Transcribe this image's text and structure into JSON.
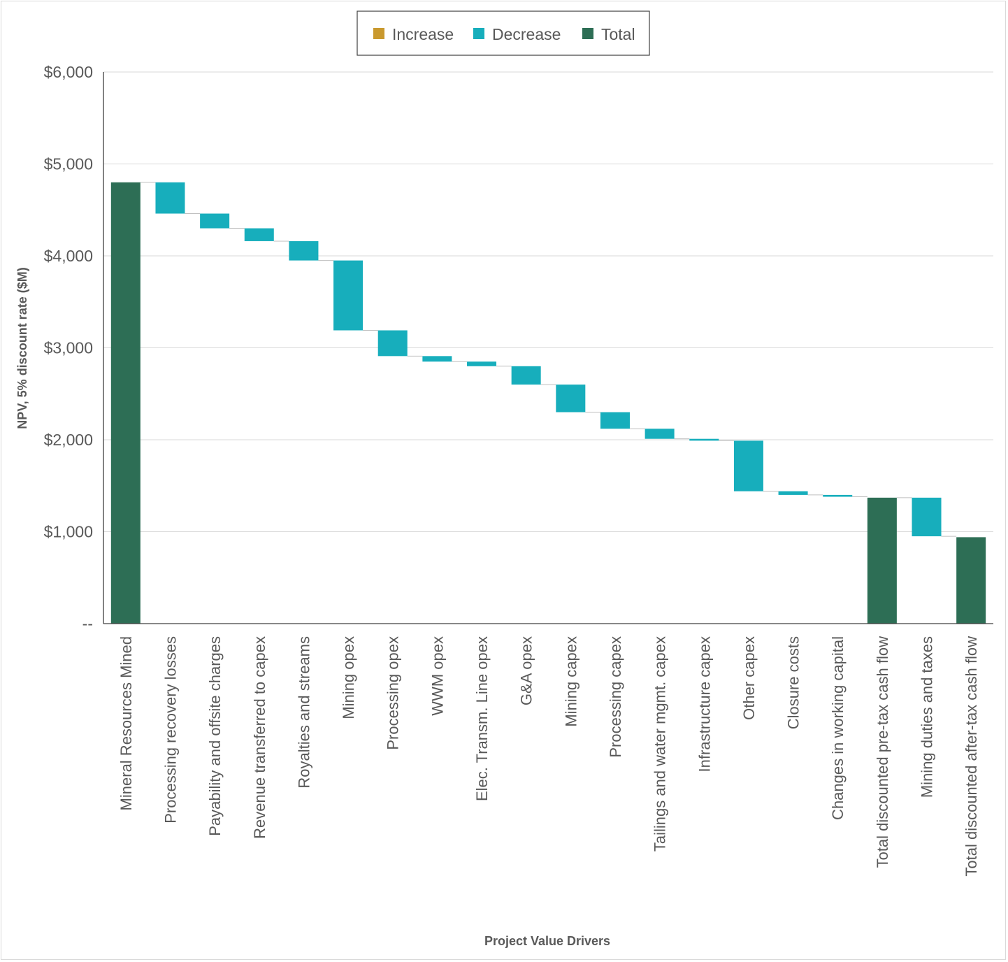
{
  "chart_data": {
    "type": "bar",
    "subtype": "waterfall",
    "xlabel": "Project Value Drivers",
    "ylabel": "NPV, 5% discount rate ($M)",
    "ylim": [
      0,
      6000
    ],
    "y_ticks": [
      {
        "value": 0,
        "label": "--"
      },
      {
        "value": 1000,
        "label": "$1,000"
      },
      {
        "value": 2000,
        "label": "$2,000"
      },
      {
        "value": 3000,
        "label": "$3,000"
      },
      {
        "value": 4000,
        "label": "$4,000"
      },
      {
        "value": 5000,
        "label": "$5,000"
      },
      {
        "value": 6000,
        "label": "$6,000"
      }
    ],
    "grid": true,
    "legend_position": "top-center",
    "legend": [
      {
        "name": "Increase",
        "color": "#c9992e"
      },
      {
        "name": "Decrease",
        "color": "#17aebc"
      },
      {
        "name": "Total",
        "color": "#2d6e55"
      }
    ],
    "categories": [
      "Mineral Resources Mined",
      "Processing recovery losses",
      "Payability and offsite charges",
      "Revenue transferred to capex",
      "Royalties and streams",
      "Mining opex",
      "Processing opex",
      "WWM opex",
      "Elec. Transm. Line opex",
      "G&A opex",
      "Mining capex",
      "Processing capex",
      "Tailings and water mgmt. capex",
      "Infrastructure capex",
      "Other capex",
      "Closure costs",
      "Changes in working capital",
      "Total discounted pre-tax cash flow",
      "Mining duties and taxes",
      "Total discounted after-tax cash flow"
    ],
    "bars": [
      {
        "kind": "total",
        "start": 0,
        "end": 4800
      },
      {
        "kind": "decrease",
        "start": 4800,
        "end": 4460
      },
      {
        "kind": "decrease",
        "start": 4460,
        "end": 4300
      },
      {
        "kind": "decrease",
        "start": 4300,
        "end": 4160
      },
      {
        "kind": "decrease",
        "start": 4160,
        "end": 3950
      },
      {
        "kind": "decrease",
        "start": 3950,
        "end": 3190
      },
      {
        "kind": "decrease",
        "start": 3190,
        "end": 2910
      },
      {
        "kind": "decrease",
        "start": 2910,
        "end": 2850
      },
      {
        "kind": "decrease",
        "start": 2850,
        "end": 2800
      },
      {
        "kind": "decrease",
        "start": 2800,
        "end": 2600
      },
      {
        "kind": "decrease",
        "start": 2600,
        "end": 2300
      },
      {
        "kind": "decrease",
        "start": 2300,
        "end": 2120
      },
      {
        "kind": "decrease",
        "start": 2120,
        "end": 2010
      },
      {
        "kind": "decrease",
        "start": 2010,
        "end": 1990
      },
      {
        "kind": "decrease",
        "start": 1990,
        "end": 1440
      },
      {
        "kind": "decrease",
        "start": 1440,
        "end": 1400
      },
      {
        "kind": "decrease",
        "start": 1400,
        "end": 1380
      },
      {
        "kind": "total",
        "start": 0,
        "end": 1370
      },
      {
        "kind": "decrease",
        "start": 1370,
        "end": 950
      },
      {
        "kind": "total",
        "start": 0,
        "end": 940
      }
    ],
    "colors": {
      "increase": "#c9992e",
      "decrease": "#17aebc",
      "total": "#2d6e55",
      "gridline": "#d9d9d9",
      "axis": "#404040",
      "connector": "#bfbfbf"
    }
  }
}
